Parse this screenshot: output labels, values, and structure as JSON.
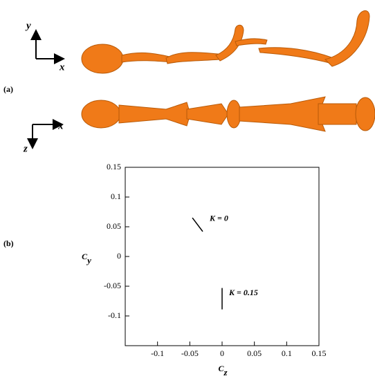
{
  "panel_labels": [
    "(a)",
    "(b)"
  ],
  "frame_axes": {
    "top": [
      "y",
      "x"
    ],
    "bottom": [
      "x",
      "z"
    ]
  },
  "chart_data": {
    "type": "line",
    "xlabel": "Cz",
    "ylabel": "Cy",
    "xlim": [
      -0.15,
      0.15
    ],
    "ylim": [
      -0.15,
      0.15
    ],
    "xticks": [
      -0.1,
      -0.05,
      0,
      0.05,
      0.1,
      0.15
    ],
    "yticks": [
      0.15,
      0.1,
      0.05,
      0,
      -0.05,
      -0.1
    ],
    "series": [
      {
        "name": "K = 0",
        "color": "#000000",
        "x": [
          -0.046,
          -0.03
        ],
        "values": [
          0.065,
          0.042
        ]
      },
      {
        "name": "K = 0.15",
        "color": "#000000",
        "x": [
          0,
          0
        ],
        "values": [
          -0.053,
          -0.089
        ]
      }
    ]
  }
}
